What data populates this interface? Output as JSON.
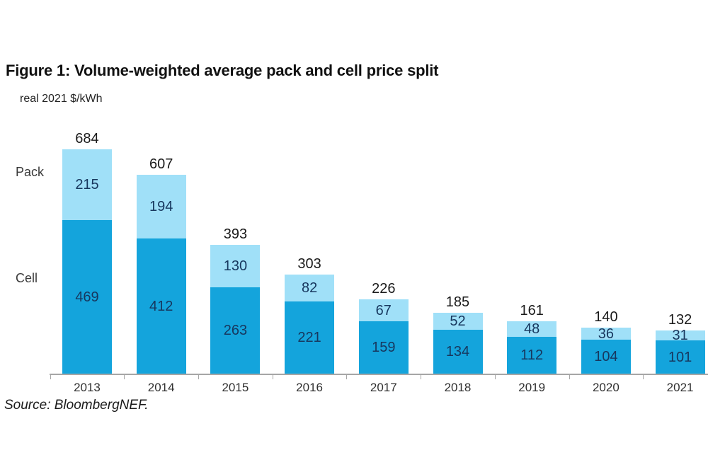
{
  "figure": {
    "title": "Figure 1: Volume-weighted average pack and cell price split",
    "unit_label": "real 2021 $/kWh",
    "source": "Source: BloombergNEF.",
    "left_axis_labels": {
      "pack": "Pack",
      "cell": "Cell"
    }
  },
  "chart_data": {
    "type": "bar",
    "stacked": true,
    "title": "Figure 1: Volume-weighted average pack and cell price split",
    "ylabel": "real 2021 $/kWh",
    "xlabel": "",
    "grid": false,
    "legend_position": "left-of-plot-as-category-labels",
    "axis_color": "#a6a6a6",
    "total_label_color": "#1a1a1a",
    "categories": [
      "2013",
      "2014",
      "2015",
      "2016",
      "2017",
      "2018",
      "2019",
      "2020",
      "2021"
    ],
    "series": [
      {
        "name": "Cell",
        "color": "#14a4dc",
        "label_color": "#17375e",
        "values": [
          469,
          412,
          263,
          221,
          159,
          134,
          112,
          104,
          101
        ]
      },
      {
        "name": "Pack",
        "color": "#a0e0f8",
        "label_color": "#17375e",
        "values": [
          215,
          194,
          130,
          82,
          67,
          52,
          48,
          36,
          31
        ]
      }
    ],
    "totals": [
      684,
      607,
      393,
      303,
      226,
      185,
      161,
      140,
      132
    ],
    "ylim": [
      0,
      700
    ]
  }
}
